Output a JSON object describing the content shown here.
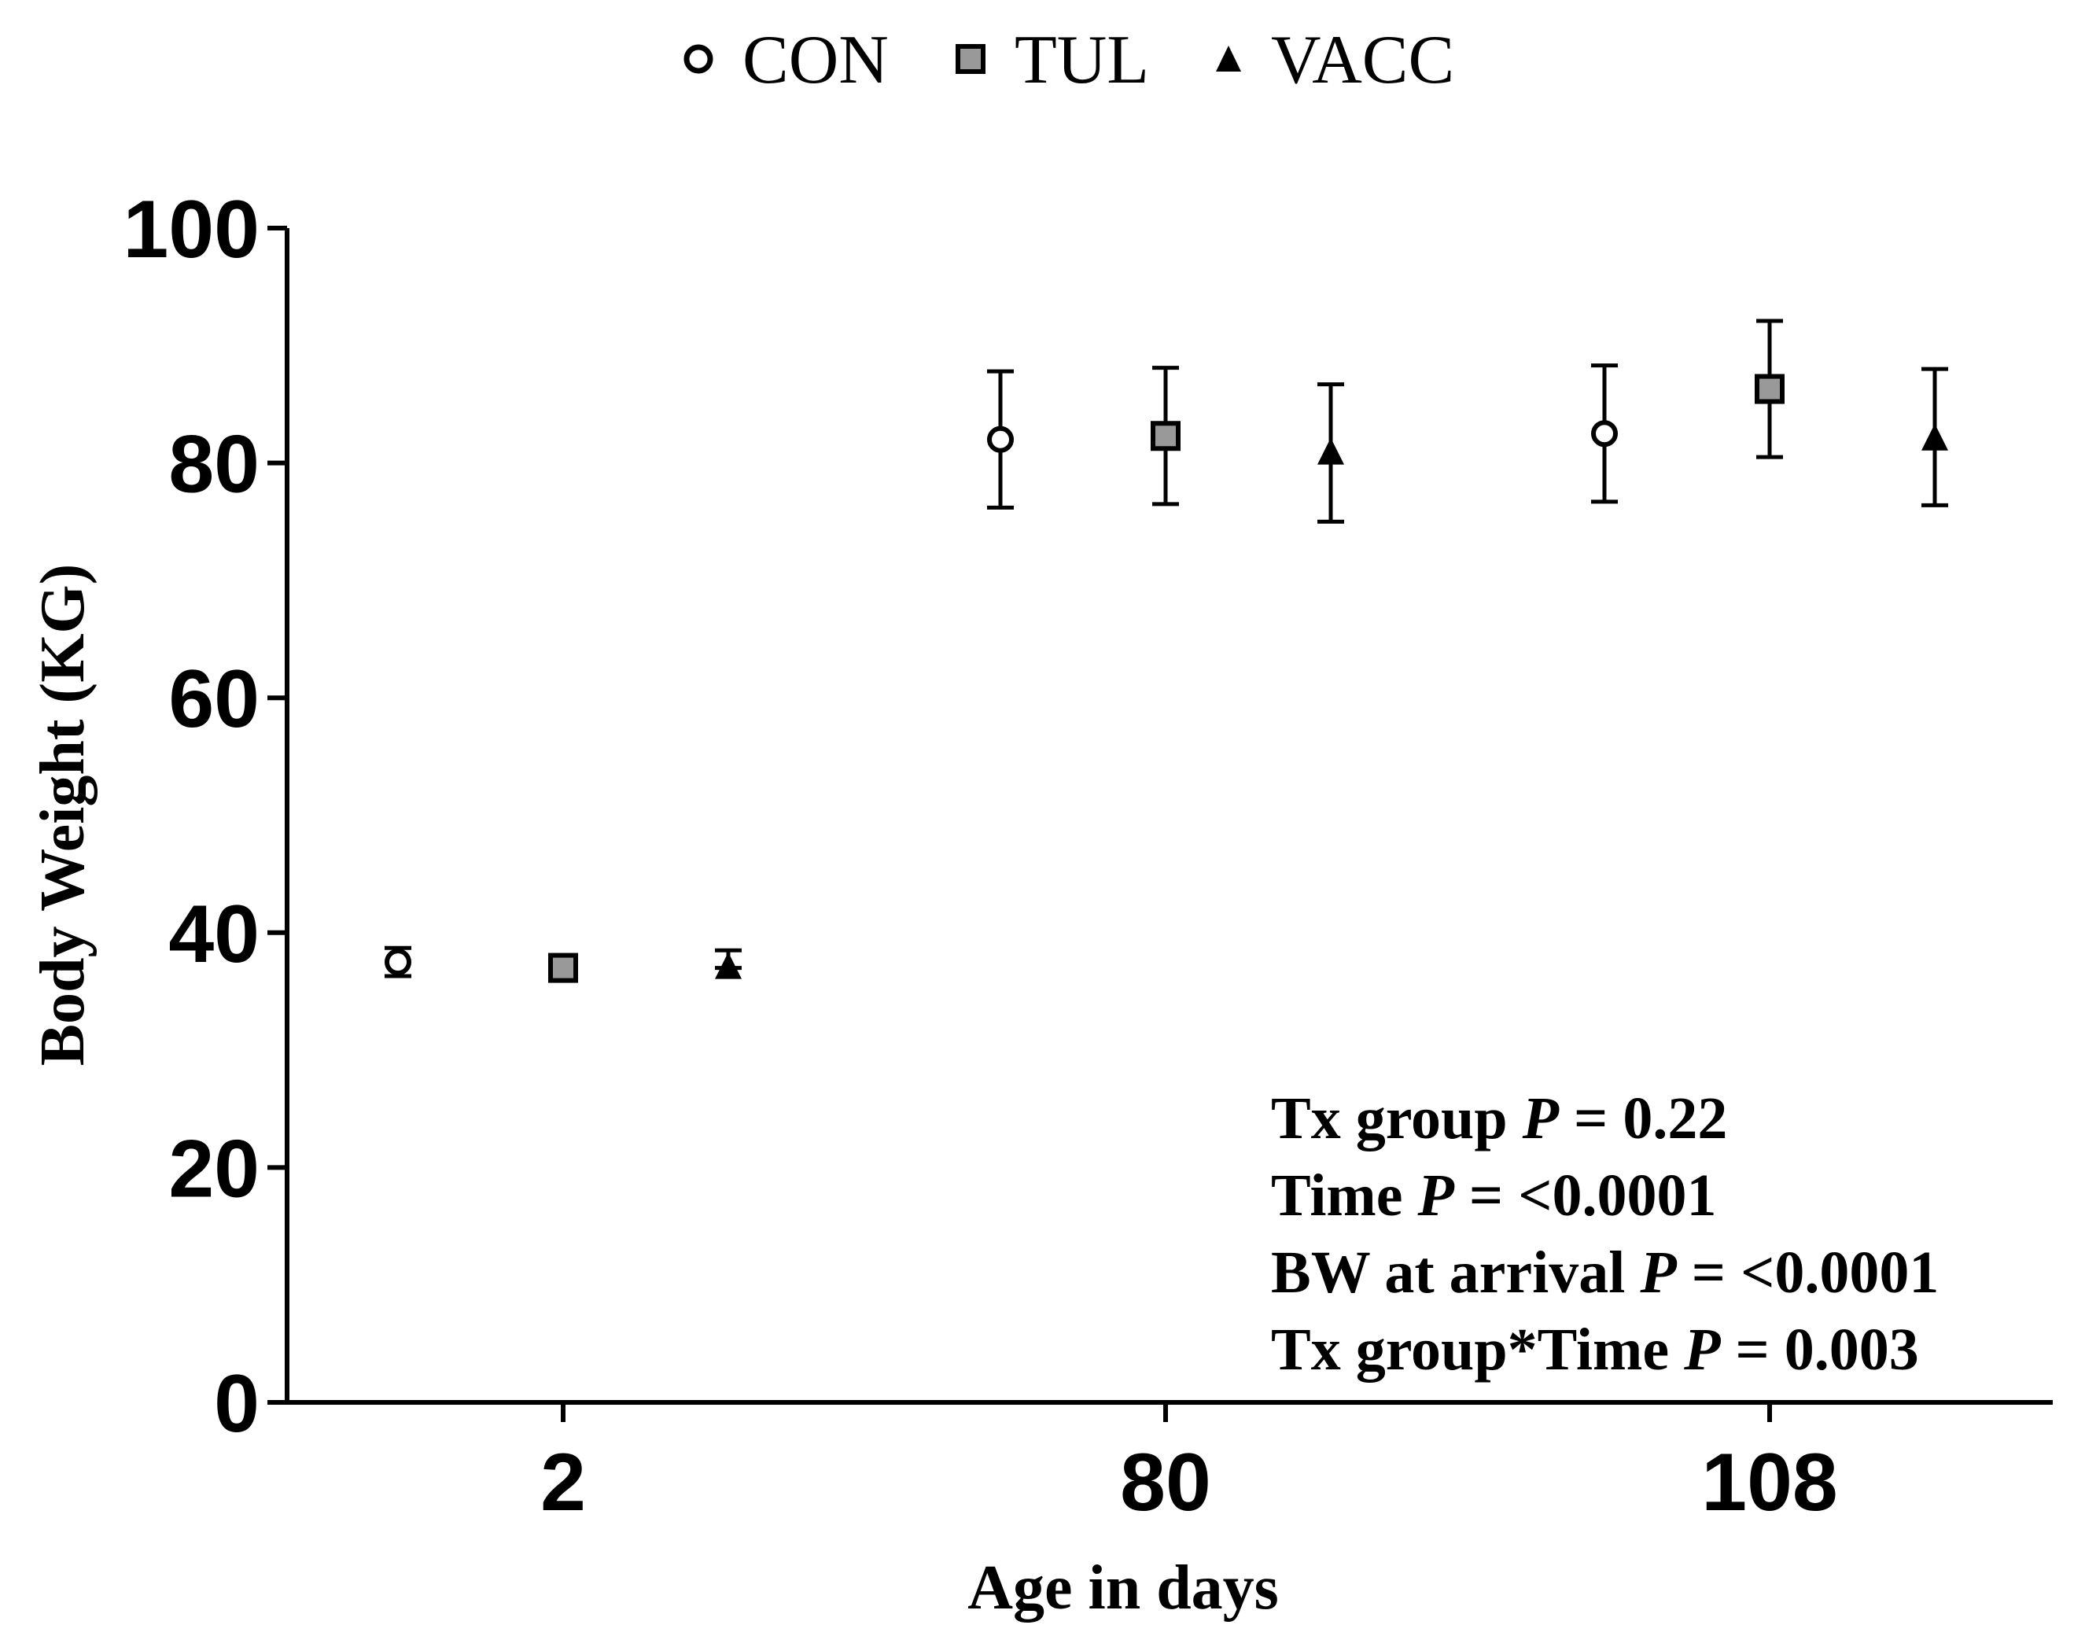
{
  "chart_data": {
    "type": "scatter",
    "categories": [
      "2",
      "80",
      "108"
    ],
    "xlabel": "Age in days",
    "ylabel": "Body Weight (KG)",
    "ylim": [
      0,
      100
    ],
    "yticks": [
      0,
      20,
      40,
      60,
      80,
      100
    ],
    "series": [
      {
        "name": "CON",
        "marker": "circle-open",
        "fill": "#ffffff",
        "values": [
          37.5,
          82.0,
          82.5
        ],
        "err_low": [
          36.3,
          76.2,
          76.7
        ],
        "err_high": [
          38.7,
          87.8,
          88.3
        ]
      },
      {
        "name": "TUL",
        "marker": "square",
        "fill": "#999999",
        "values": [
          37.0,
          82.3,
          86.3
        ],
        "err_low": [
          37.0,
          76.5,
          80.5
        ],
        "err_high": [
          37.0,
          88.1,
          92.1
        ]
      },
      {
        "name": "VACC",
        "marker": "triangle",
        "fill": "#000000",
        "values": [
          37.0,
          80.8,
          82.0
        ],
        "err_low": [
          37.0,
          75.0,
          76.4
        ],
        "err_high": [
          38.5,
          86.7,
          88.0
        ]
      }
    ],
    "annotations": [
      {
        "text": "Tx group ",
        "italic": "P",
        "rest": " = 0.22"
      },
      {
        "text": "Time ",
        "italic": "P",
        "rest": " = <0.0001"
      },
      {
        "text": "BW at arrival ",
        "italic": "P",
        "rest": " = <0.0001"
      },
      {
        "text": "Tx group*Time ",
        "italic": "P",
        "rest": " = 0.003"
      }
    ],
    "legend_position": "top-center"
  },
  "colors": {
    "axis": "#000000",
    "tul_fill": "#999999"
  }
}
